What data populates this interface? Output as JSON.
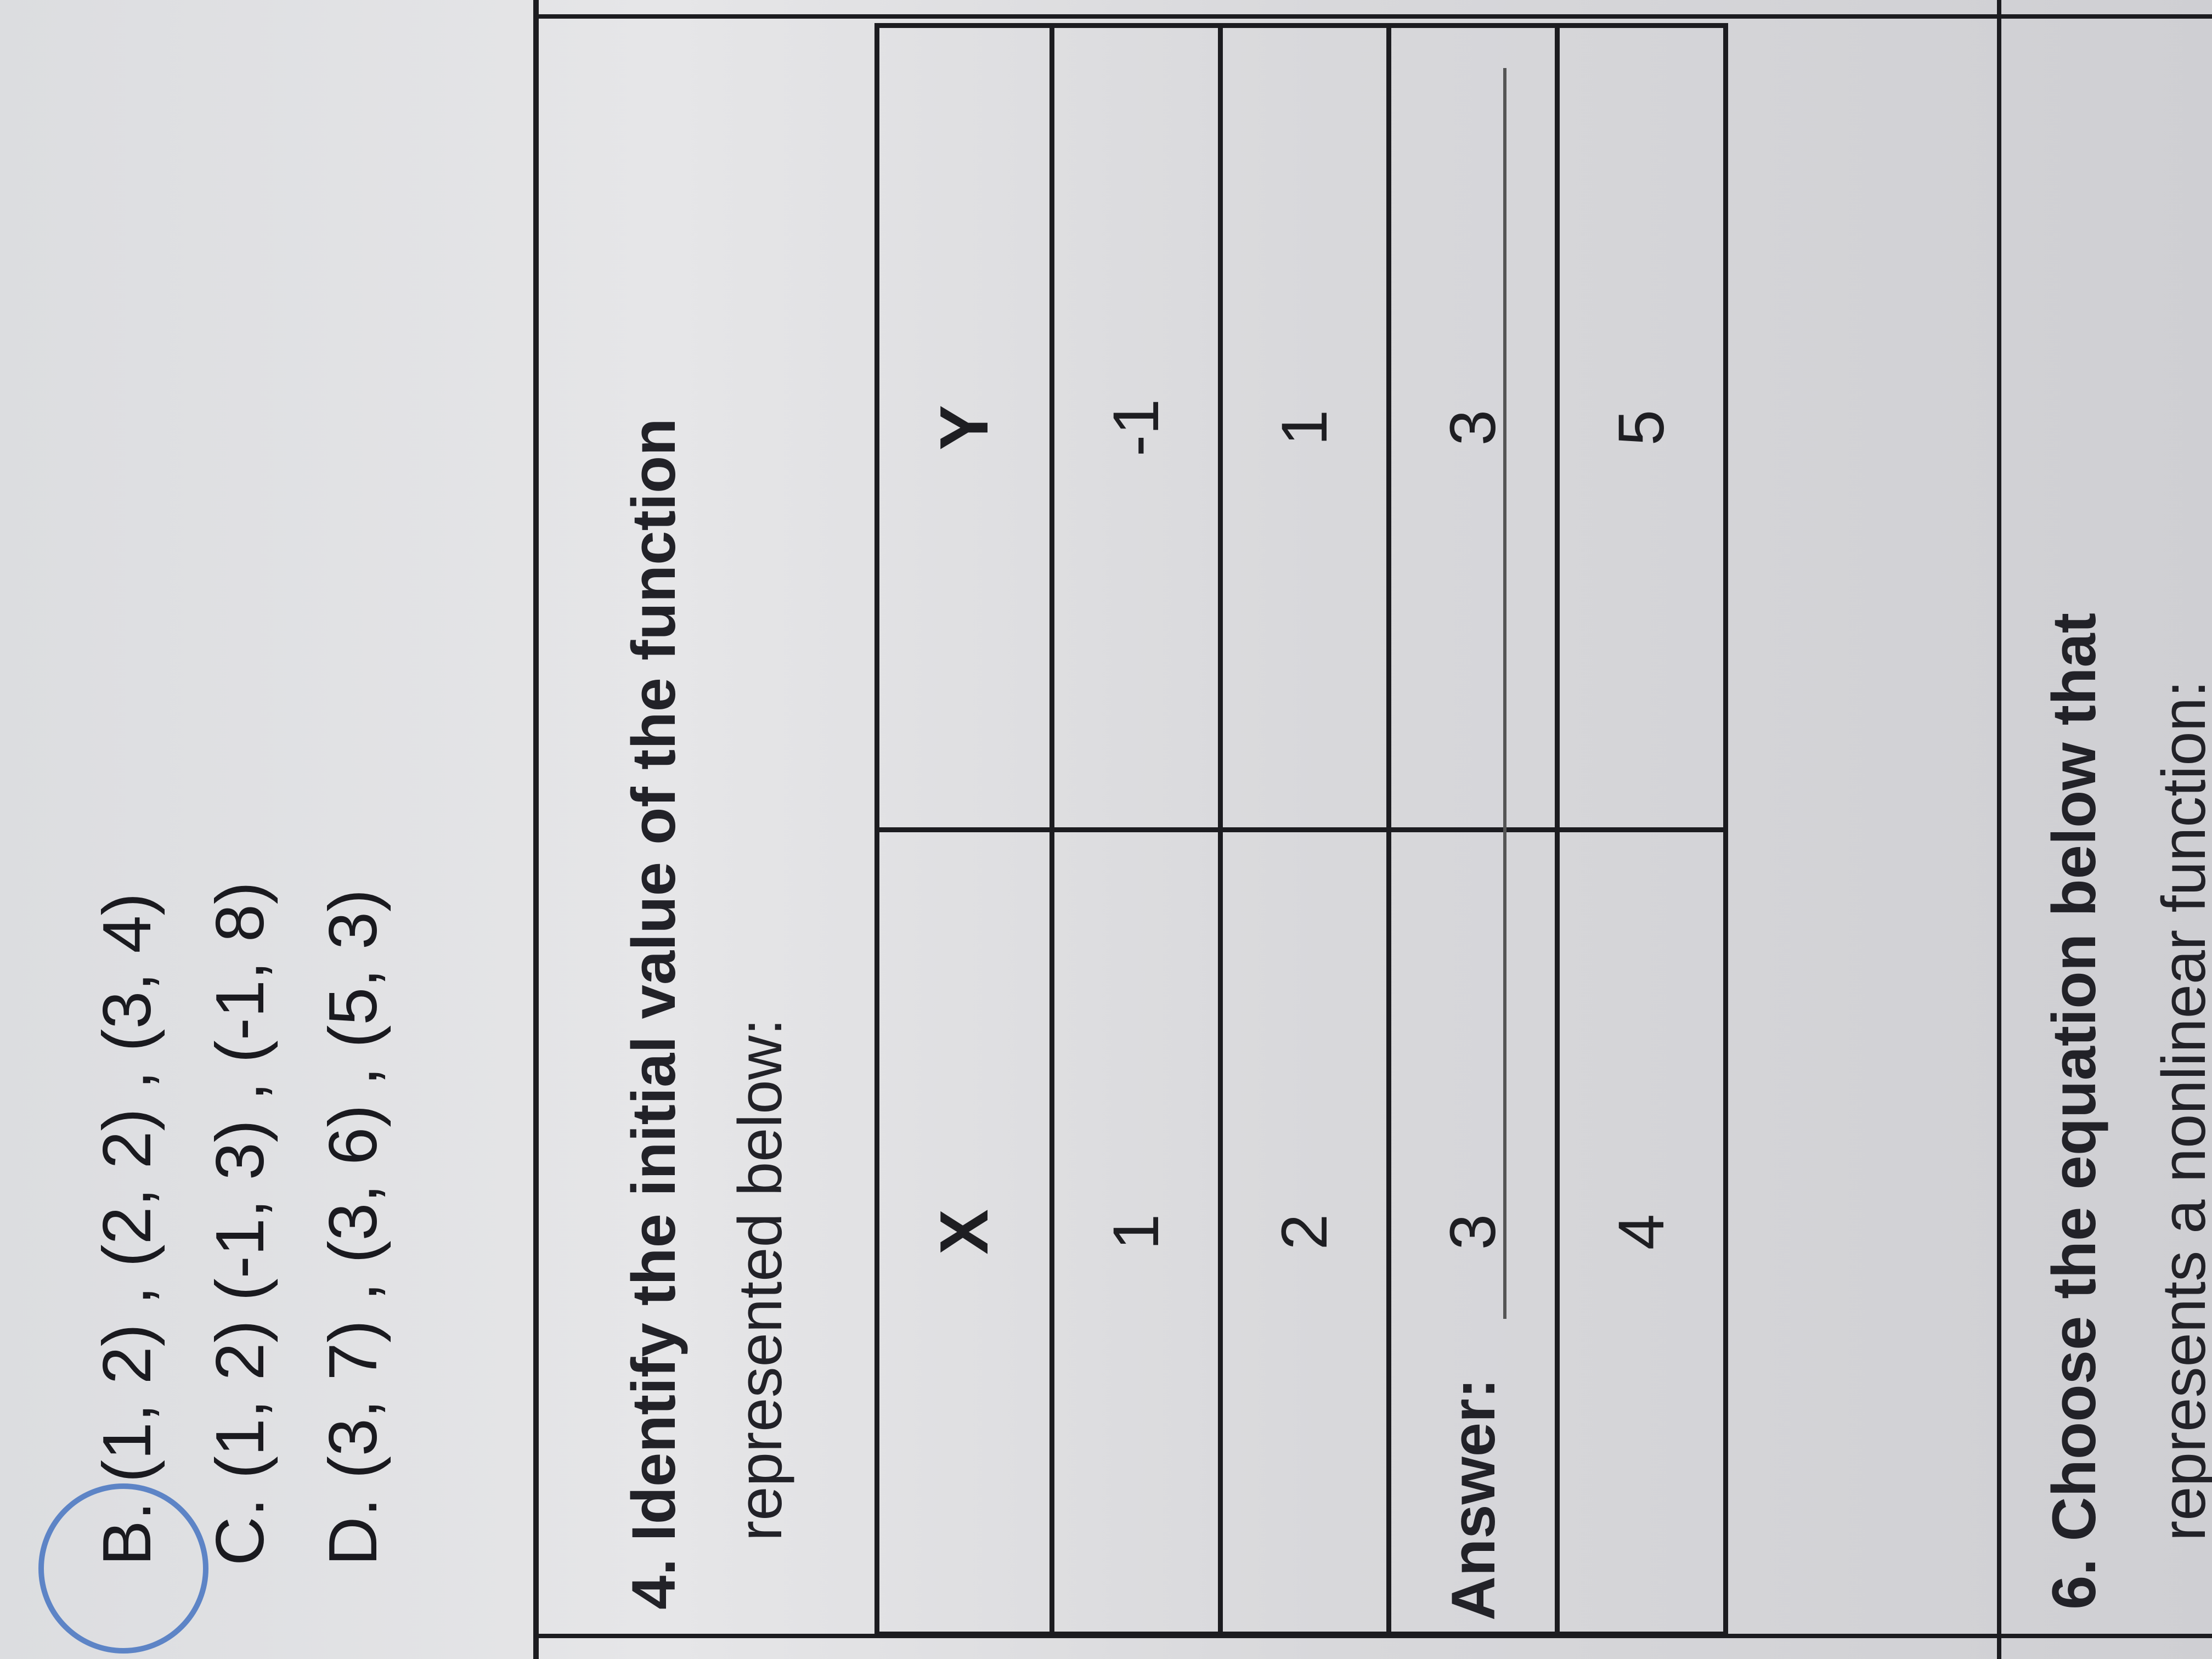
{
  "options": [
    {
      "letter": "B.",
      "text": "(1, 2) , (2, 2) , (3, 4)",
      "circled": true
    },
    {
      "letter": "C.",
      "text": "(1, 2) (-1, 3) , (-1, 8)",
      "circled": false
    },
    {
      "letter": "D.",
      "text": "(3, 7) , (3, 6) , (5, 3)",
      "circled": false
    }
  ],
  "question4": {
    "number": "4.",
    "line1": "Identify the initial value of the function",
    "line2": "represented below:"
  },
  "table": {
    "headers": [
      "X",
      "Y"
    ],
    "rows": [
      [
        "1",
        "-1"
      ],
      [
        "2",
        "1"
      ],
      [
        "3",
        "3"
      ],
      [
        "4",
        "5"
      ]
    ]
  },
  "answer_label": "Answer:",
  "question6": {
    "number": "6.",
    "line1": "Choose the equation below that",
    "line2": "represents a nonlinear function:"
  },
  "colors": {
    "circle": "#5d84c6",
    "ink": "#1c1c20"
  }
}
